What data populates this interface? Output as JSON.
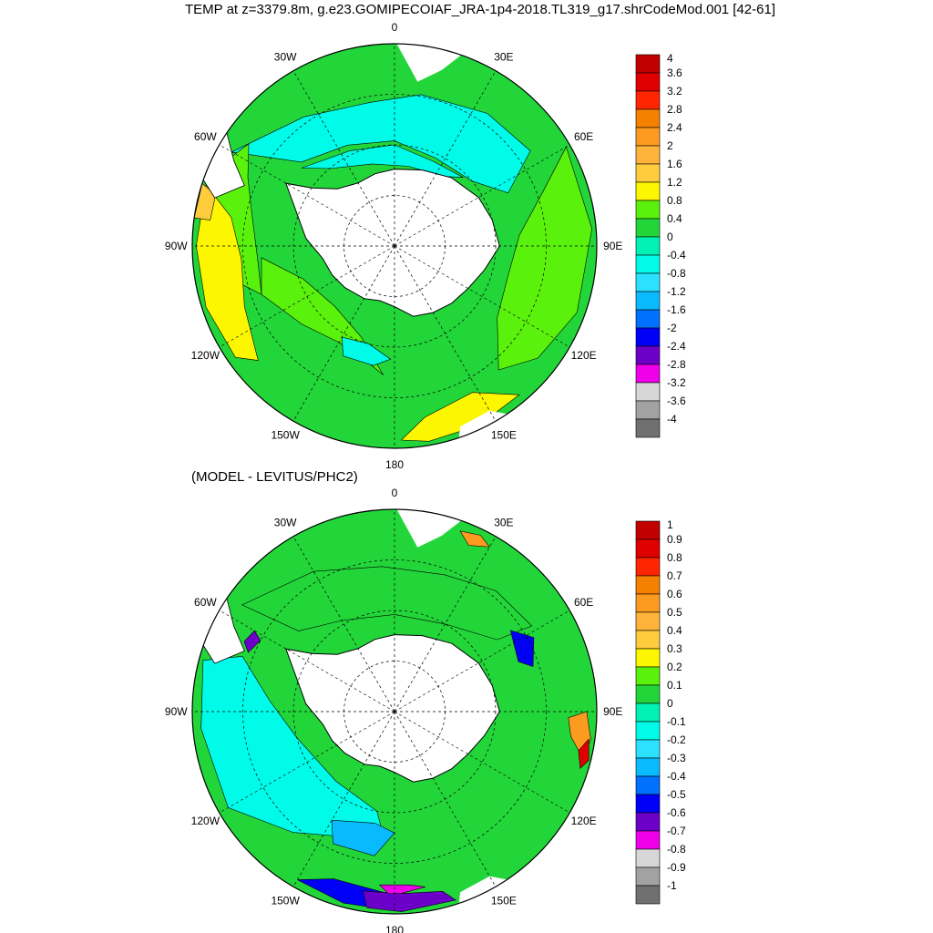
{
  "title": "TEMP at z=3379.8m, g.e23.GOMIPECOIAF_JRA-1p4-2018.TL319_g17.shrCodeMod.001 [42-61]",
  "subtitle": "(MODEL - LEVITUS/PHC2)",
  "longitude_labels": {
    "lon_0": "0",
    "lon_30E": "30E",
    "lon_60E": "60E",
    "lon_90E": "90E",
    "lon_120E": "120E",
    "lon_150E": "150E",
    "lon_180": "180",
    "lon_150W": "150W",
    "lon_120W": "120W",
    "lon_90W": "90W",
    "lon_60W": "60W",
    "lon_30W": "30W"
  },
  "colors": {
    "land": "#ffffff",
    "coast": "#000000"
  },
  "maps": [
    {
      "name": "model-temperature-map",
      "field": "TEMP",
      "colorbar": {
        "labels": [
          "4",
          "3.6",
          "3.2",
          "2.8",
          "2.4",
          "2",
          "1.6",
          "1.2",
          "0.8",
          "0.4",
          "0",
          "-0.4",
          "-0.8",
          "-1.2",
          "-1.6",
          "-2",
          "-2.4",
          "-2.8",
          "-3.2",
          "-3.6",
          "-4"
        ],
        "colors": [
          "#c10000",
          "#e10000",
          "#ff2500",
          "#f68000",
          "#fd9a20",
          "#feb43b",
          "#fecc3c",
          "#fcf600",
          "#5af10c",
          "#22d63a",
          "#00f3b5",
          "#00fbe8",
          "#2ce1ff",
          "#0abaff",
          "#0070ff",
          "#0000f6",
          "#6c00c9",
          "#ee00ea",
          "#d7d7d7",
          "#a2a2a2",
          "#707070"
        ]
      },
      "regions": [
        {
          "name": "atlantic-cold-water",
          "color": "#00fbe8"
        },
        {
          "name": "weddell-basin",
          "color": "#00fbe8"
        },
        {
          "name": "scotia-warm-band",
          "color": "#5af10c"
        },
        {
          "name": "pacific-green-band",
          "color": "#5af10c"
        },
        {
          "name": "chile-yellow-region",
          "color": "#fcf600"
        },
        {
          "name": "chile-orange-patch",
          "color": "#fecc3c"
        },
        {
          "name": "ross-cold-patch",
          "color": "#00fbe8"
        },
        {
          "name": "australia-green-band",
          "color": "#5af10c"
        },
        {
          "name": "pacific-yellow-north",
          "color": "#fcf600"
        }
      ]
    },
    {
      "name": "model-minus-levitus-map",
      "field": "TEMP difference",
      "colorbar": {
        "labels": [
          "1",
          "0.9",
          "0.8",
          "0.7",
          "0.6",
          "0.5",
          "0.4",
          "0.3",
          "0.2",
          "0.1",
          "0",
          "-0.1",
          "-0.2",
          "-0.3",
          "-0.4",
          "-0.5",
          "-0.6",
          "-0.7",
          "-0.8",
          "-0.9",
          "-1"
        ],
        "colors": [
          "#c10000",
          "#e10000",
          "#ff2500",
          "#f68000",
          "#fd9a20",
          "#feb43b",
          "#fecc3c",
          "#fcf600",
          "#5af10c",
          "#22d63a",
          "#00f3b5",
          "#00fbe8",
          "#2ce1ff",
          "#0abaff",
          "#0070ff",
          "#0000f6",
          "#6c00c9",
          "#ee00ea",
          "#d7d7d7",
          "#a2a2a2",
          "#707070"
        ]
      },
      "regions": [
        {
          "name": "weddell-green",
          "color": "#22d63a"
        },
        {
          "name": "pacific-cyan",
          "color": "#00fbe8"
        },
        {
          "name": "ross-blue",
          "color": "#0abaff"
        },
        {
          "name": "ross-dark-blue",
          "color": "#0000f6"
        },
        {
          "name": "tasman-purple",
          "color": "#6c00c9"
        },
        {
          "name": "tasman-magenta",
          "color": "#ee00ea"
        },
        {
          "name": "indian-blue-eddy",
          "color": "#0000f6"
        },
        {
          "name": "kerguelen-orange",
          "color": "#fd9a20"
        },
        {
          "name": "east-india-red",
          "color": "#e10000"
        },
        {
          "name": "agulhas-orange",
          "color": "#fd9a20"
        },
        {
          "name": "drake-red-blue",
          "color": "#6c00c9"
        }
      ]
    }
  ]
}
